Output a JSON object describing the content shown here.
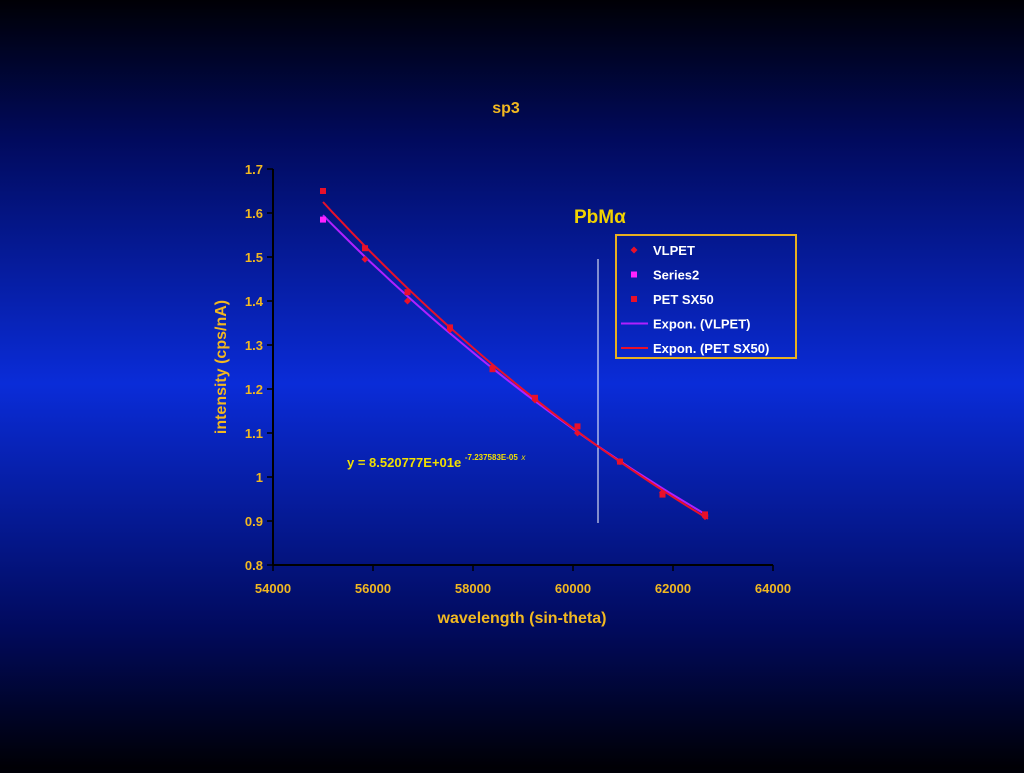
{
  "colors": {
    "axis_text": "#f2b820",
    "title_text": "#f2d200",
    "annotation_text": "#f2e000",
    "legend_border": "#e8b020",
    "legend_text": "#ffffff",
    "threshold_line": "#ffffff"
  },
  "chart_data": {
    "type": "scatter",
    "title": "sp3",
    "xlabel": "wavelength (sin-theta)",
    "ylabel": "intensity (cps/nA)",
    "xlim": [
      54000,
      64000
    ],
    "ylim": [
      0.8,
      1.7
    ],
    "x_ticks": [
      "54000",
      "56000",
      "58000",
      "60000",
      "62000",
      "64000"
    ],
    "y_ticks": [
      "0.8",
      "0.9",
      "1",
      "1.1",
      "1.2",
      "1.3",
      "1.4",
      "1.5",
      "1.6",
      "1.7"
    ],
    "grid": false,
    "legend_placement": "right",
    "annotation_label": "PbMα",
    "equation": {
      "base": "y = 8.520777E+01e",
      "exponent": "-7.237583E-05",
      "suffix": "x"
    },
    "vertical_line_x": 60500,
    "series": [
      {
        "name": "VLPET",
        "marker": "diamond",
        "color": "#e8102a",
        "x": [
          55840,
          56690,
          57540,
          58390,
          59240,
          60090,
          60940,
          61790,
          62640
        ],
        "y": [
          1.495,
          1.4,
          1.335,
          1.25,
          1.175,
          1.1,
          1.035,
          0.965,
          0.91
        ]
      },
      {
        "name": "Series2",
        "marker": "square",
        "color": "#ff22ff",
        "x": [
          55000
        ],
        "y": [
          1.585
        ]
      },
      {
        "name": "PET SX50",
        "marker": "square",
        "color": "#e8102a",
        "x": [
          55000,
          55840,
          56690,
          57540,
          58390,
          59240,
          60090,
          60940,
          61790,
          62640
        ],
        "y": [
          1.65,
          1.52,
          1.42,
          1.34,
          1.245,
          1.18,
          1.115,
          1.035,
          0.96,
          0.915
        ]
      },
      {
        "name": "Expon. (VLPET)",
        "type": "trendline",
        "color": "#b020ff",
        "x": [
          55000,
          62700
        ],
        "y": [
          1.595,
          0.912
        ]
      },
      {
        "name": "Expon. (PET SX50)",
        "type": "trendline",
        "color": "#e8102a",
        "x": [
          55000,
          62700
        ],
        "y": [
          1.625,
          0.905
        ]
      }
    ]
  }
}
